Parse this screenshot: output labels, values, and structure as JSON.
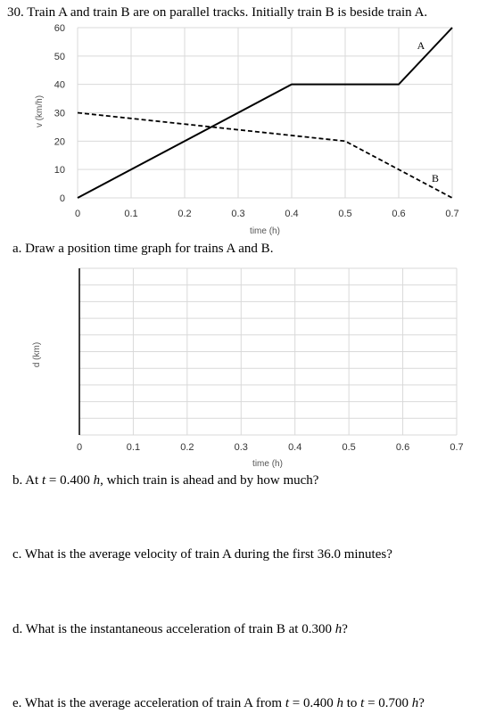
{
  "questions": {
    "q30": "30. Train A and train B are on parallel tracks.  Initially train B is beside train A.",
    "a": "a.  Draw a position time graph for trains A and B.",
    "b_prefix": "b.  At ",
    "b_var": "t",
    "b_mid": " = 0.400 ",
    "b_unit": "h",
    "b_suffix": ", which train is ahead and by how much?",
    "c": "c.  What is the average velocity of train A during the first 36.0 minutes?",
    "d_prefix": "d.  What is the instantaneous acceleration of train B at 0.300 ",
    "d_unit": "h",
    "d_suffix": "?",
    "e_prefix": "e.  What is the average acceleration of train A from ",
    "e_var1": "t",
    "e_mid1": " = 0.400 ",
    "e_unit1": "h",
    "e_mid2": " to ",
    "e_var2": "t",
    "e_mid3": " = 0.700 ",
    "e_unit2": "h",
    "e_suffix": "?"
  },
  "chart_data": [
    {
      "type": "line",
      "xlabel": "time (h)",
      "ylabel": "v (km/h)",
      "xlim": [
        0,
        0.7
      ],
      "ylim": [
        0,
        60
      ],
      "xticks": [
        "0",
        "0.1",
        "0.2",
        "0.3",
        "0.4",
        "0.5",
        "0.6",
        "0.7"
      ],
      "yticks": [
        "0",
        "10",
        "20",
        "30",
        "40",
        "50",
        "60"
      ],
      "grid": true,
      "series": [
        {
          "name": "A",
          "style": "solid",
          "x": [
            0,
            0.4,
            0.6,
            0.7
          ],
          "y": [
            0,
            40,
            40,
            60
          ]
        },
        {
          "name": "B",
          "style": "dashed",
          "x": [
            0,
            0.5,
            0.7
          ],
          "y": [
            30,
            20,
            0
          ]
        }
      ]
    },
    {
      "type": "line",
      "xlabel": "time (h)",
      "ylabel": "d (km)",
      "xlim": [
        0,
        0.7
      ],
      "xticks": [
        "0",
        "0.1",
        "0.2",
        "0.3",
        "0.4",
        "0.5",
        "0.6",
        "0.7"
      ],
      "grid": true,
      "series": []
    }
  ]
}
